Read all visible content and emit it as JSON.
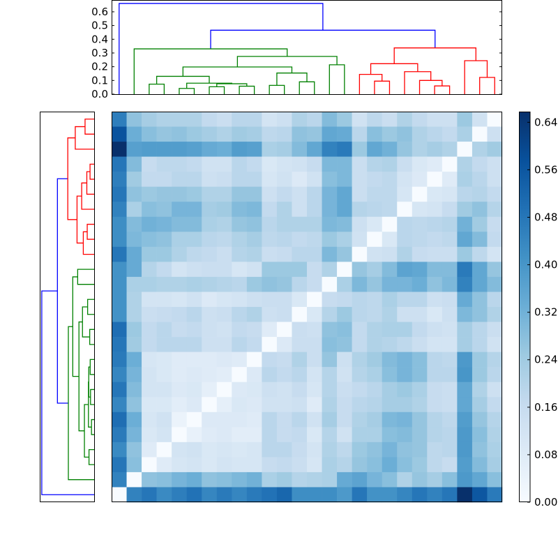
{
  "chart_data": {
    "type": "heatmap",
    "title": "",
    "description_kind": "clustered distance matrix with dendrograms",
    "n_leaves": 26,
    "value_range": [
      0,
      0.658
    ],
    "colormap_stops": [
      "#f7fbff",
      "#deebf7",
      "#c6dbef",
      "#9ecae1",
      "#6baed6",
      "#4292c6",
      "#2171b5",
      "#08519c",
      "#08306b"
    ],
    "link_colors": {
      "b": "#0000ff",
      "g": "#008000",
      "r": "#ff0000"
    },
    "matrix": [
      [
        0.46,
        0.27,
        0.23,
        0.21,
        0.21,
        0.21,
        0.17,
        0.15,
        0.19,
        0.19,
        0.12,
        0.14,
        0.21,
        0.19,
        0.29,
        0.25,
        0.13,
        0.18,
        0.15,
        0.21,
        0.17,
        0.14,
        0.14,
        0.25,
        0.13,
        0.0
      ],
      [
        0.57,
        0.33,
        0.28,
        0.26,
        0.27,
        0.25,
        0.23,
        0.21,
        0.24,
        0.23,
        0.18,
        0.19,
        0.27,
        0.26,
        0.35,
        0.34,
        0.19,
        0.28,
        0.25,
        0.27,
        0.21,
        0.19,
        0.17,
        0.22,
        0.0,
        0.14
      ],
      [
        0.66,
        0.37,
        0.38,
        0.38,
        0.38,
        0.37,
        0.34,
        0.33,
        0.38,
        0.37,
        0.22,
        0.23,
        0.29,
        0.35,
        0.45,
        0.47,
        0.25,
        0.35,
        0.32,
        0.26,
        0.21,
        0.23,
        0.21,
        0.0,
        0.21,
        0.24
      ],
      [
        0.48,
        0.29,
        0.16,
        0.18,
        0.18,
        0.17,
        0.13,
        0.13,
        0.19,
        0.17,
        0.1,
        0.12,
        0.13,
        0.16,
        0.3,
        0.3,
        0.15,
        0.2,
        0.21,
        0.15,
        0.1,
        0.08,
        0.0,
        0.21,
        0.17,
        0.14
      ],
      [
        0.46,
        0.24,
        0.17,
        0.17,
        0.19,
        0.19,
        0.14,
        0.15,
        0.19,
        0.19,
        0.11,
        0.13,
        0.09,
        0.13,
        0.28,
        0.3,
        0.15,
        0.17,
        0.18,
        0.12,
        0.09,
        0.0,
        0.08,
        0.22,
        0.19,
        0.14
      ],
      [
        0.48,
        0.27,
        0.25,
        0.26,
        0.26,
        0.25,
        0.21,
        0.21,
        0.26,
        0.26,
        0.14,
        0.17,
        0.14,
        0.19,
        0.31,
        0.35,
        0.15,
        0.18,
        0.18,
        0.11,
        0.0,
        0.1,
        0.11,
        0.19,
        0.2,
        0.17
      ],
      [
        0.45,
        0.22,
        0.28,
        0.27,
        0.31,
        0.31,
        0.23,
        0.24,
        0.29,
        0.3,
        0.17,
        0.21,
        0.14,
        0.19,
        0.31,
        0.35,
        0.2,
        0.19,
        0.18,
        0.0,
        0.11,
        0.12,
        0.16,
        0.24,
        0.27,
        0.2
      ],
      [
        0.42,
        0.29,
        0.32,
        0.31,
        0.29,
        0.29,
        0.22,
        0.21,
        0.26,
        0.27,
        0.19,
        0.21,
        0.21,
        0.21,
        0.3,
        0.29,
        0.14,
        0.1,
        0.0,
        0.19,
        0.18,
        0.19,
        0.2,
        0.32,
        0.24,
        0.16
      ],
      [
        0.42,
        0.3,
        0.28,
        0.27,
        0.22,
        0.22,
        0.19,
        0.18,
        0.21,
        0.23,
        0.18,
        0.19,
        0.17,
        0.18,
        0.25,
        0.22,
        0.13,
        0.0,
        0.1,
        0.19,
        0.18,
        0.17,
        0.18,
        0.35,
        0.29,
        0.17
      ],
      [
        0.48,
        0.34,
        0.25,
        0.25,
        0.21,
        0.18,
        0.17,
        0.15,
        0.2,
        0.21,
        0.15,
        0.16,
        0.19,
        0.19,
        0.3,
        0.26,
        0.0,
        0.13,
        0.14,
        0.21,
        0.16,
        0.15,
        0.15,
        0.25,
        0.18,
        0.12
      ],
      [
        0.41,
        0.34,
        0.2,
        0.17,
        0.12,
        0.14,
        0.15,
        0.15,
        0.11,
        0.13,
        0.25,
        0.25,
        0.25,
        0.16,
        0.21,
        0.0,
        0.26,
        0.23,
        0.29,
        0.36,
        0.35,
        0.29,
        0.29,
        0.47,
        0.35,
        0.26
      ],
      [
        0.41,
        0.22,
        0.22,
        0.21,
        0.21,
        0.22,
        0.21,
        0.2,
        0.19,
        0.25,
        0.27,
        0.26,
        0.19,
        0.16,
        0.0,
        0.22,
        0.3,
        0.26,
        0.31,
        0.31,
        0.33,
        0.27,
        0.3,
        0.45,
        0.35,
        0.29
      ],
      [
        0.41,
        0.21,
        0.12,
        0.12,
        0.11,
        0.13,
        0.09,
        0.11,
        0.12,
        0.14,
        0.15,
        0.15,
        0.1,
        0.0,
        0.16,
        0.17,
        0.19,
        0.18,
        0.22,
        0.19,
        0.19,
        0.14,
        0.15,
        0.34,
        0.27,
        0.19
      ],
      [
        0.41,
        0.21,
        0.15,
        0.16,
        0.17,
        0.19,
        0.14,
        0.15,
        0.19,
        0.21,
        0.14,
        0.15,
        0.0,
        0.1,
        0.2,
        0.25,
        0.19,
        0.18,
        0.21,
        0.14,
        0.14,
        0.1,
        0.14,
        0.3,
        0.27,
        0.21
      ],
      [
        0.5,
        0.25,
        0.17,
        0.19,
        0.16,
        0.17,
        0.14,
        0.13,
        0.17,
        0.16,
        0.08,
        0.0,
        0.15,
        0.14,
        0.27,
        0.28,
        0.17,
        0.21,
        0.22,
        0.22,
        0.17,
        0.14,
        0.13,
        0.23,
        0.19,
        0.15
      ],
      [
        0.48,
        0.24,
        0.17,
        0.19,
        0.19,
        0.19,
        0.14,
        0.14,
        0.19,
        0.17,
        0.0,
        0.09,
        0.15,
        0.15,
        0.28,
        0.27,
        0.17,
        0.21,
        0.2,
        0.18,
        0.15,
        0.12,
        0.12,
        0.23,
        0.19,
        0.13
      ],
      [
        0.47,
        0.33,
        0.11,
        0.1,
        0.08,
        0.08,
        0.08,
        0.09,
        0.08,
        0.0,
        0.17,
        0.16,
        0.21,
        0.15,
        0.26,
        0.14,
        0.21,
        0.24,
        0.29,
        0.31,
        0.28,
        0.19,
        0.18,
        0.39,
        0.25,
        0.2
      ],
      [
        0.44,
        0.31,
        0.12,
        0.1,
        0.08,
        0.09,
        0.08,
        0.07,
        0.0,
        0.09,
        0.19,
        0.17,
        0.19,
        0.12,
        0.2,
        0.13,
        0.2,
        0.22,
        0.28,
        0.31,
        0.28,
        0.19,
        0.19,
        0.4,
        0.25,
        0.19
      ],
      [
        0.48,
        0.29,
        0.12,
        0.12,
        0.09,
        0.1,
        0.06,
        0.0,
        0.09,
        0.1,
        0.14,
        0.13,
        0.16,
        0.11,
        0.2,
        0.15,
        0.17,
        0.19,
        0.23,
        0.25,
        0.22,
        0.16,
        0.15,
        0.35,
        0.21,
        0.14
      ],
      [
        0.44,
        0.27,
        0.1,
        0.1,
        0.07,
        0.09,
        0.0,
        0.06,
        0.1,
        0.09,
        0.13,
        0.13,
        0.14,
        0.08,
        0.21,
        0.16,
        0.19,
        0.2,
        0.23,
        0.23,
        0.21,
        0.16,
        0.15,
        0.35,
        0.23,
        0.17
      ],
      [
        0.5,
        0.33,
        0.11,
        0.13,
        0.04,
        0.0,
        0.09,
        0.09,
        0.09,
        0.08,
        0.19,
        0.16,
        0.19,
        0.13,
        0.23,
        0.16,
        0.21,
        0.23,
        0.3,
        0.31,
        0.26,
        0.2,
        0.18,
        0.38,
        0.26,
        0.2
      ],
      [
        0.47,
        0.31,
        0.1,
        0.12,
        0.0,
        0.05,
        0.08,
        0.09,
        0.07,
        0.07,
        0.19,
        0.16,
        0.17,
        0.1,
        0.2,
        0.13,
        0.22,
        0.22,
        0.28,
        0.29,
        0.26,
        0.2,
        0.19,
        0.39,
        0.28,
        0.21
      ],
      [
        0.43,
        0.27,
        0.08,
        0.0,
        0.12,
        0.13,
        0.1,
        0.11,
        0.1,
        0.11,
        0.19,
        0.19,
        0.16,
        0.12,
        0.21,
        0.18,
        0.25,
        0.27,
        0.31,
        0.27,
        0.26,
        0.18,
        0.19,
        0.39,
        0.27,
        0.22
      ],
      [
        0.48,
        0.28,
        0.0,
        0.08,
        0.11,
        0.12,
        0.1,
        0.12,
        0.11,
        0.11,
        0.16,
        0.17,
        0.15,
        0.11,
        0.22,
        0.2,
        0.26,
        0.28,
        0.33,
        0.28,
        0.25,
        0.18,
        0.16,
        0.38,
        0.29,
        0.23
      ],
      [
        0.45,
        0.0,
        0.27,
        0.28,
        0.31,
        0.33,
        0.27,
        0.28,
        0.3,
        0.32,
        0.22,
        0.24,
        0.2,
        0.21,
        0.22,
        0.34,
        0.36,
        0.31,
        0.28,
        0.21,
        0.26,
        0.23,
        0.28,
        0.39,
        0.35,
        0.28
      ],
      [
        0.0,
        0.45,
        0.48,
        0.43,
        0.46,
        0.49,
        0.44,
        0.47,
        0.44,
        0.47,
        0.49,
        0.52,
        0.42,
        0.42,
        0.42,
        0.39,
        0.48,
        0.41,
        0.41,
        0.44,
        0.48,
        0.45,
        0.48,
        0.66,
        0.56,
        0.47
      ]
    ],
    "dendrogram": {
      "height_range": [
        0,
        0.686
      ],
      "tree": {
        "h": 0.661,
        "c": "b",
        "l": 0,
        "r": {
          "h": 0.466,
          "c": "b",
          "l": {
            "h": 0.33,
            "c": "g",
            "l": 1,
            "r": {
              "h": 0.275,
              "c": "g",
              "l": {
                "h": 0.198,
                "c": "g",
                "l": {
                  "h": 0.13,
                  "c": "g",
                  "l": {
                    "h": 0.073,
                    "c": "g",
                    "l": 2,
                    "r": 3
                  },
                  "r": {
                    "h": 0.08,
                    "c": "g",
                    "l": {
                      "h": 0.042,
                      "c": "g",
                      "l": 4,
                      "r": 5
                    },
                    "r": {
                      "h": 0.076,
                      "c": "g",
                      "l": {
                        "h": 0.054,
                        "c": "g",
                        "l": 6,
                        "r": 7
                      },
                      "r": {
                        "h": 0.058,
                        "c": "g",
                        "l": 8,
                        "r": 9
                      }
                    }
                  }
                },
                "r": {
                  "h": 0.154,
                  "c": "g",
                  "l": {
                    "h": 0.064,
                    "c": "g",
                    "l": 10,
                    "r": 11
                  },
                  "r": {
                    "h": 0.09,
                    "c": "g",
                    "l": 12,
                    "r": 13
                  }
                }
              },
              "r": {
                "h": 0.214,
                "c": "g",
                "l": 14,
                "r": 15
              }
            }
          },
          "r": {
            "h": 0.337,
            "c": "r",
            "l": {
              "h": 0.222,
              "c": "r",
              "l": {
                "h": 0.144,
                "c": "r",
                "l": 16,
                "r": {
                  "h": 0.095,
                  "c": "r",
                  "l": 17,
                  "r": 18
                }
              },
              "r": {
                "h": 0.164,
                "c": "r",
                "l": 19,
                "r": {
                  "h": 0.1,
                  "c": "r",
                  "l": 20,
                  "r": {
                    "h": 0.06,
                    "c": "r",
                    "l": 21,
                    "r": 22
                  }
                }
              }
            },
            "r": {
              "h": 0.244,
              "c": "r",
              "l": 23,
              "r": {
                "h": 0.122,
                "c": "r",
                "l": 24,
                "r": 25
              }
            }
          }
        }
      },
      "top_ticks": [
        {
          "value": 0.0,
          "label": "0.0"
        },
        {
          "value": 0.1,
          "label": "0.1"
        },
        {
          "value": 0.2,
          "label": "0.2"
        },
        {
          "value": 0.3,
          "label": "0.3"
        },
        {
          "value": 0.4,
          "label": "0.4"
        },
        {
          "value": 0.5,
          "label": "0.5"
        },
        {
          "value": 0.6,
          "label": "0.6"
        }
      ]
    },
    "colorbar": {
      "range": [
        0,
        0.658
      ],
      "ticks": [
        {
          "value": 0.0,
          "label": "0.00"
        },
        {
          "value": 0.08,
          "label": "0.08"
        },
        {
          "value": 0.16,
          "label": "0.16"
        },
        {
          "value": 0.24,
          "label": "0.24"
        },
        {
          "value": 0.32,
          "label": "0.32"
        },
        {
          "value": 0.4,
          "label": "0.40"
        },
        {
          "value": 0.48,
          "label": "0.48"
        },
        {
          "value": 0.56,
          "label": "0.56"
        },
        {
          "value": 0.64,
          "label": "0.64"
        }
      ]
    }
  }
}
